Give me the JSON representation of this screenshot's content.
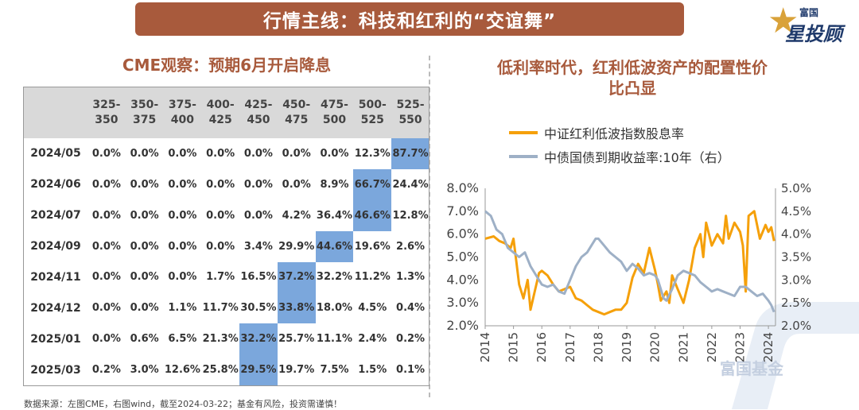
{
  "banner": {
    "title": "行情主线：科技和红利的“交谊舞”"
  },
  "logo": {
    "small": "富国",
    "big": "星投顾"
  },
  "left": {
    "title": "CME观察：预期6月开启降息",
    "columns": [
      "325-\n350",
      "350-\n375",
      "375-\n400",
      "400-\n425",
      "425-\n450",
      "450-\n475",
      "475-\n500",
      "500-\n525",
      "525-\n550"
    ],
    "column_labels": [
      [
        "325-",
        "350"
      ],
      [
        "350-",
        "375"
      ],
      [
        "375-",
        "400"
      ],
      [
        "400-",
        "425"
      ],
      [
        "425-",
        "450"
      ],
      [
        "450-",
        "475"
      ],
      [
        "475-",
        "500"
      ],
      [
        "500-",
        "525"
      ],
      [
        "525-",
        "550"
      ]
    ],
    "highlight_color": "#7ba7dc",
    "rows": [
      {
        "label": "2024/05",
        "values": [
          "0.0%",
          "0.0%",
          "0.0%",
          "0.0%",
          "0.0%",
          "0.0%",
          "0.0%",
          "12.3%",
          "87.7%"
        ],
        "highlight": 8
      },
      {
        "label": "2024/06",
        "values": [
          "0.0%",
          "0.0%",
          "0.0%",
          "0.0%",
          "0.0%",
          "0.0%",
          "8.9%",
          "66.7%",
          "24.4%"
        ],
        "highlight": 7
      },
      {
        "label": "2024/07",
        "values": [
          "0.0%",
          "0.0%",
          "0.0%",
          "0.0%",
          "0.0%",
          "4.2%",
          "36.4%",
          "46.6%",
          "12.8%"
        ],
        "highlight": 7
      },
      {
        "label": "2024/09",
        "values": [
          "0.0%",
          "0.0%",
          "0.0%",
          "0.0%",
          "3.4%",
          "29.9%",
          "44.6%",
          "19.6%",
          "2.6%"
        ],
        "highlight": 6
      },
      {
        "label": "2024/11",
        "values": [
          "0.0%",
          "0.0%",
          "0.0%",
          "1.7%",
          "16.5%",
          "37.2%",
          "32.2%",
          "11.2%",
          "1.3%"
        ],
        "highlight": 5
      },
      {
        "label": "2024/12",
        "values": [
          "0.0%",
          "0.0%",
          "1.1%",
          "11.7%",
          "30.5%",
          "33.8%",
          "18.0%",
          "4.5%",
          "0.4%"
        ],
        "highlight": 5
      },
      {
        "label": "2025/01",
        "values": [
          "0.0%",
          "0.6%",
          "6.5%",
          "21.3%",
          "32.2%",
          "25.7%",
          "11.1%",
          "2.4%",
          "0.2%"
        ],
        "highlight": 4
      },
      {
        "label": "2025/03",
        "values": [
          "0.2%",
          "3.0%",
          "12.6%",
          "25.8%",
          "29.5%",
          "19.7%",
          "7.5%",
          "1.5%",
          "0.1%"
        ],
        "highlight": 4
      }
    ]
  },
  "source": "数据来源：左图CME，右图wind，截至2024-03-22；基金有风险，投资需谨慎！",
  "watermark": "富国基金",
  "chart_data": {
    "type": "line",
    "title": "低利率时代，红利低波资产的配置性价比凸显",
    "title_lines": [
      "低利率时代，红利低波资产的配置性价",
      "比凸显"
    ],
    "xlabel": "",
    "ylabel": "",
    "x_ticks": [
      "2014",
      "2015",
      "2016",
      "2017",
      "2018",
      "2019",
      "2020",
      "2021",
      "2022",
      "2023",
      "2024"
    ],
    "xlim": [
      2014.0,
      2024.25
    ],
    "y_left": {
      "lim": [
        2.0,
        8.0
      ],
      "ticks": [
        "2.0%",
        "3.0%",
        "4.0%",
        "5.0%",
        "6.0%",
        "7.0%",
        "8.0%"
      ]
    },
    "y_right": {
      "lim": [
        2.0,
        5.0
      ],
      "ticks": [
        "2.0%",
        "2.5%",
        "3.0%",
        "3.5%",
        "4.0%",
        "4.5%",
        "5.0%"
      ]
    },
    "grid": false,
    "legend_position": "top",
    "series": [
      {
        "name": "中证红利低波指数股息率",
        "axis": "left",
        "color": "#f5a00a",
        "x": [
          2014.0,
          2014.3,
          2014.5,
          2014.7,
          2014.9,
          2015.0,
          2015.1,
          2015.2,
          2015.35,
          2015.5,
          2015.6,
          2015.75,
          2015.9,
          2016.0,
          2016.2,
          2016.4,
          2016.6,
          2016.8,
          2017.0,
          2017.2,
          2017.4,
          2017.6,
          2017.8,
          2018.0,
          2018.2,
          2018.4,
          2018.6,
          2018.8,
          2019.0,
          2019.2,
          2019.4,
          2019.6,
          2019.8,
          2020.0,
          2020.1,
          2020.2,
          2020.4,
          2020.5,
          2020.6,
          2020.8,
          2021.0,
          2021.2,
          2021.4,
          2021.6,
          2021.7,
          2021.8,
          2022.0,
          2022.2,
          2022.4,
          2022.5,
          2022.6,
          2022.8,
          2023.0,
          2023.1,
          2023.2,
          2023.3,
          2023.5,
          2023.7,
          2023.9,
          2024.0,
          2024.1,
          2024.2
        ],
        "values": [
          5.8,
          5.9,
          5.7,
          5.6,
          5.4,
          5.8,
          4.8,
          3.8,
          3.2,
          4.0,
          2.7,
          3.5,
          4.3,
          4.4,
          4.2,
          3.8,
          3.5,
          3.6,
          3.7,
          3.2,
          3.1,
          2.9,
          2.7,
          2.6,
          2.5,
          2.6,
          2.7,
          2.7,
          3.0,
          4.1,
          4.7,
          4.3,
          5.4,
          4.4,
          3.8,
          3.1,
          3.5,
          3.0,
          4.2,
          3.6,
          3.0,
          4.0,
          5.4,
          6.0,
          5.0,
          6.5,
          5.5,
          6.0,
          5.6,
          6.8,
          5.8,
          6.5,
          6.1,
          5.5,
          3.5,
          6.8,
          7.0,
          5.8,
          6.4,
          6.1,
          6.3,
          5.7
        ]
      },
      {
        "name": "中债国债到期收益率:10年（右）",
        "axis": "right",
        "color": "#9eb0c6",
        "x": [
          2014.0,
          2014.2,
          2014.4,
          2014.6,
          2014.8,
          2015.0,
          2015.2,
          2015.4,
          2015.6,
          2015.8,
          2016.0,
          2016.2,
          2016.4,
          2016.6,
          2016.8,
          2017.0,
          2017.2,
          2017.4,
          2017.6,
          2017.8,
          2017.9,
          2018.0,
          2018.2,
          2018.4,
          2018.6,
          2018.8,
          2019.0,
          2019.2,
          2019.4,
          2019.6,
          2019.8,
          2020.0,
          2020.1,
          2020.2,
          2020.3,
          2020.4,
          2020.6,
          2020.8,
          2021.0,
          2021.2,
          2021.4,
          2021.6,
          2021.8,
          2022.0,
          2022.2,
          2022.4,
          2022.6,
          2022.8,
          2023.0,
          2023.2,
          2023.4,
          2023.6,
          2023.8,
          2024.0,
          2024.1,
          2024.2
        ],
        "values": [
          4.5,
          4.4,
          4.1,
          4.0,
          3.7,
          3.6,
          3.5,
          3.6,
          3.3,
          3.1,
          2.9,
          2.85,
          2.9,
          2.75,
          2.7,
          3.0,
          3.3,
          3.5,
          3.6,
          3.8,
          3.9,
          3.9,
          3.75,
          3.6,
          3.5,
          3.4,
          3.2,
          3.35,
          3.25,
          3.1,
          3.15,
          3.1,
          3.0,
          2.8,
          2.6,
          2.55,
          2.8,
          3.1,
          3.2,
          3.15,
          3.1,
          2.95,
          2.85,
          2.75,
          2.8,
          2.75,
          2.7,
          2.65,
          2.85,
          2.85,
          2.75,
          2.65,
          2.7,
          2.55,
          2.45,
          2.3
        ]
      }
    ]
  }
}
